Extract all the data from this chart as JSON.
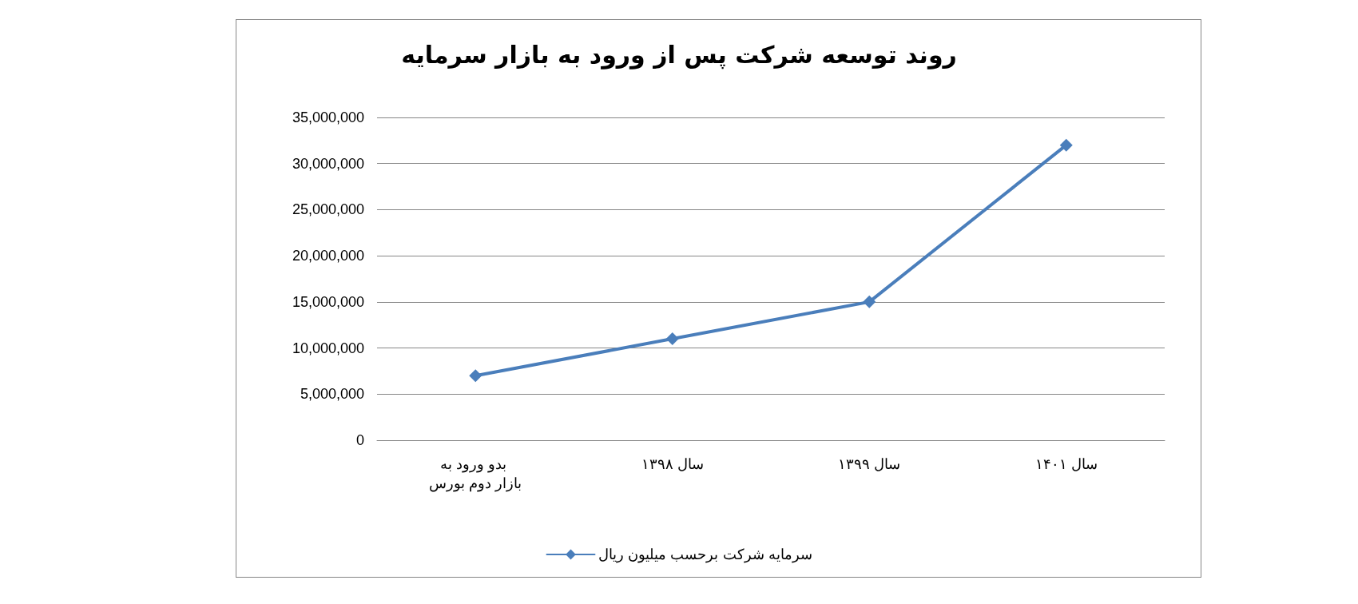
{
  "chart_data": {
    "type": "line",
    "title": "روند توسعه شرکت پس از ورود به بازار سرمایه",
    "categories": [
      "بدو ورود به بازار دوم بورس",
      "سال ۱۳۹۸",
      "سال ۱۳۹۹",
      "سال ۱۴۰۱"
    ],
    "series": [
      {
        "name": "سرمایه شرکت برحسب میلیون ریال",
        "color": "#4a7ebb",
        "values": [
          7000000,
          11000000,
          15000000,
          32000000
        ]
      }
    ],
    "ylim": [
      0,
      35000000
    ],
    "yticks": [
      0,
      {
        "value": 5000000,
        "label": "5,000,000"
      },
      {
        "value": 10000000,
        "label": "10,000,000"
      },
      {
        "value": 15000000,
        "label": "15,000,000"
      },
      {
        "value": 20000000,
        "label": "20,000,000"
      },
      {
        "value": 25000000,
        "label": "25,000,000"
      },
      {
        "value": 30000000,
        "label": "30,000,000"
      },
      {
        "value": 35000000,
        "label": "35,000,000"
      }
    ],
    "grid": "y",
    "legend": "bottom",
    "marker": "diamond",
    "line_style": "solid"
  }
}
